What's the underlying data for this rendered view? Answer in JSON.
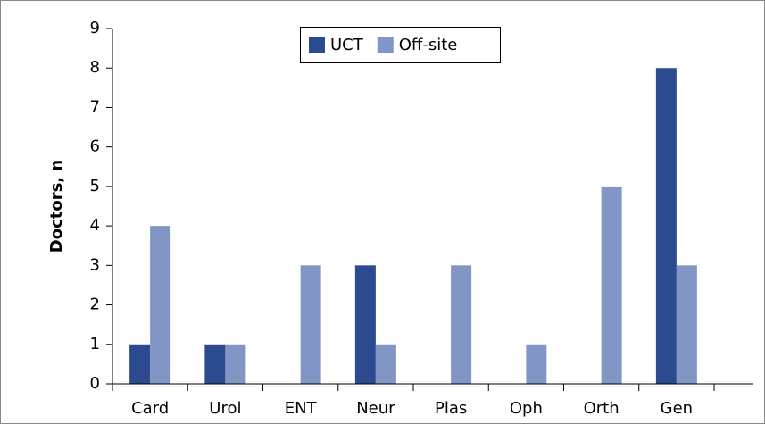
{
  "chart_data": {
    "type": "bar",
    "ylabel": "Doctors, n",
    "categories": [
      "Card",
      "Urol",
      "ENT",
      "Neur",
      "Plas",
      "Oph",
      "Orth",
      "Gen"
    ],
    "series": [
      {
        "name": "UCT",
        "color": "#2b4a8f",
        "values": [
          1,
          1,
          0,
          3,
          0,
          0,
          0,
          8
        ]
      },
      {
        "name": "Off-site",
        "color": "#8196c5",
        "values": [
          4,
          1,
          3,
          1,
          3,
          1,
          5,
          3
        ]
      }
    ],
    "ylim": [
      0,
      9
    ],
    "yticks": [
      0,
      1,
      2,
      3,
      4,
      5,
      6,
      7,
      8,
      9
    ],
    "legend": "top"
  }
}
